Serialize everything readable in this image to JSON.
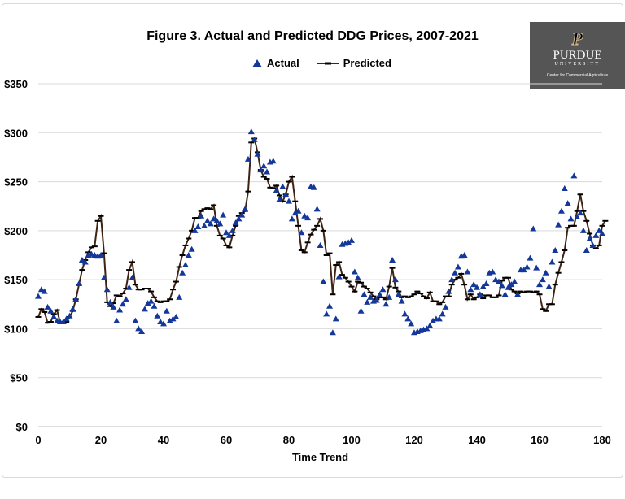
{
  "chart_data": {
    "type": "scatter+line",
    "title": "Figure 3. Actual and Predicted DDG Prices, 2007-2021",
    "xlabel": "Time Trend",
    "ylabel": "",
    "xlim": [
      0,
      180
    ],
    "ylim": [
      0,
      350
    ],
    "x_ticks": [
      "0",
      "20",
      "40",
      "60",
      "80",
      "100",
      "120",
      "140",
      "160",
      "180"
    ],
    "y_ticks": [
      "$0",
      "$50",
      "$100",
      "$150",
      "$200",
      "$250",
      "$300",
      "$350"
    ],
    "grid": "horizontal",
    "legend": "top-center",
    "series": [
      {
        "name": "Actual",
        "marker": "triangle",
        "color": "#14389a",
        "values": [
          133,
          140,
          138,
          122,
          118,
          112,
          108,
          107,
          107,
          110,
          113,
          120,
          130,
          146,
          170,
          168,
          175,
          176,
          175,
          174,
          175,
          152,
          140,
          127,
          122,
          108,
          119,
          125,
          130,
          142,
          152,
          108,
          100,
          97,
          120,
          126,
          128,
          123,
          113,
          107,
          105,
          118,
          108,
          110,
          112,
          132,
          157,
          165,
          175,
          181,
          200,
          204,
          215,
          205,
          210,
          207,
          212,
          210,
          207,
          216,
          198,
          195,
          200,
          208,
          212,
          216,
          222,
          273,
          301,
          293,
          278,
          262,
          266,
          260,
          270,
          271,
          241,
          232,
          245,
          237,
          230,
          212,
          218,
          220,
          198,
          215,
          213,
          245,
          244,
          222,
          185,
          148,
          115,
          123,
          96,
          110,
          153,
          186,
          187,
          188,
          190,
          158,
          152,
          118,
          135,
          127,
          132,
          128,
          129,
          135,
          140,
          125,
          132,
          170,
          150,
          135,
          128,
          115,
          110,
          105,
          96,
          97,
          98,
          99,
          100,
          103,
          108,
          110,
          110,
          115,
          122,
          138,
          150,
          157,
          163,
          174,
          175,
          158,
          140,
          145,
          142,
          135,
          143,
          146,
          157,
          158,
          150,
          148,
          144,
          135,
          142,
          145,
          148,
          135,
          160,
          160,
          163,
          172,
          202,
          162,
          145,
          150,
          157,
          143,
          168,
          180,
          206,
          220,
          243,
          228,
          212,
          256,
          214,
          218,
          200,
          180,
          192,
          185,
          195,
          200,
          197
        ]
      },
      {
        "name": "Predicted",
        "marker": "dash",
        "color": "#3d2314",
        "values": [
          112,
          120,
          117,
          106,
          107,
          115,
          119,
          106,
          107,
          107,
          112,
          118,
          130,
          145,
          160,
          170,
          178,
          183,
          184,
          210,
          215,
          177,
          127,
          123,
          126,
          134,
          133,
          136,
          141,
          160,
          168,
          145,
          140,
          140,
          141,
          141,
          138,
          132,
          128,
          127,
          128,
          128,
          130,
          140,
          148,
          163,
          175,
          185,
          192,
          200,
          213,
          213,
          220,
          222,
          223,
          222,
          226,
          205,
          195,
          192,
          185,
          183,
          195,
          205,
          215,
          218,
          220,
          240,
          290,
          294,
          280,
          262,
          255,
          253,
          244,
          243,
          246,
          236,
          230,
          237,
          250,
          255,
          230,
          205,
          180,
          178,
          188,
          196,
          201,
          205,
          212,
          200,
          175,
          177,
          135,
          165,
          168,
          155,
          152,
          148,
          143,
          138,
          148,
          147,
          143,
          141,
          137,
          133,
          130,
          132,
          132,
          130,
          143,
          162,
          142,
          138,
          132,
          133,
          132,
          133,
          135,
          138,
          136,
          133,
          131,
          137,
          128,
          128,
          125,
          127,
          133,
          133,
          145,
          150,
          152,
          156,
          145,
          130,
          135,
          130,
          132,
          135,
          131,
          134,
          134,
          132,
          132,
          134,
          149,
          152,
          152,
          140,
          138,
          136,
          138,
          137,
          138,
          138,
          137,
          138,
          135,
          120,
          118,
          125,
          125,
          145,
          157,
          168,
          180,
          203,
          205,
          205,
          220,
          237,
          220,
          210,
          197,
          185,
          182,
          185,
          205,
          210
        ]
      }
    ]
  },
  "logo": {
    "name": "PURDUE",
    "sub": "UNIVERSITY",
    "center": "Center for Commercial Agriculture"
  }
}
